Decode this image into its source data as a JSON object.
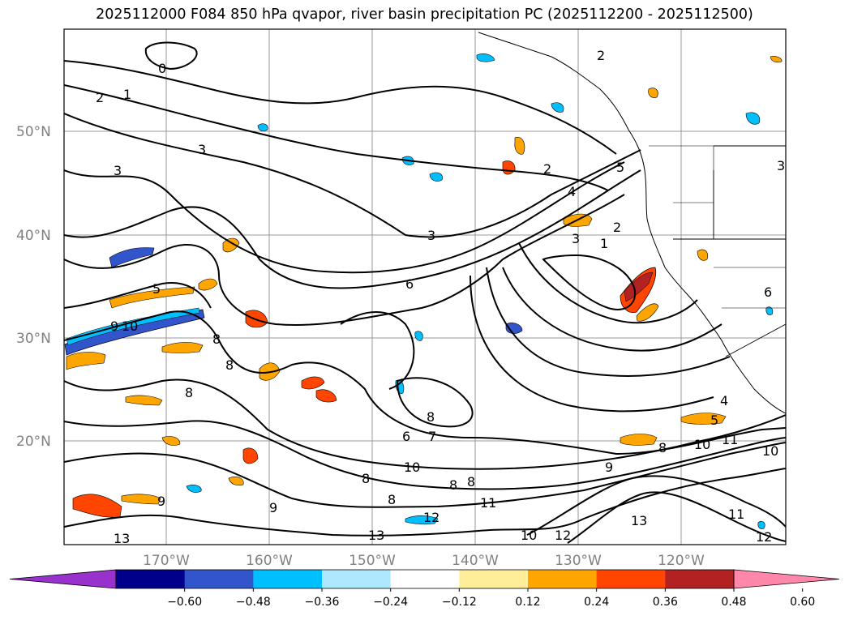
{
  "title": "2025112000 F084 850 hPa qvapor, river basin precipitation PC (2025112200 - 2025112500)",
  "map": {
    "lat_labels": [
      "50°N",
      "40°N",
      "30°N",
      "20°N"
    ],
    "lon_labels": [
      "170°W",
      "160°W",
      "150°W",
      "140°W",
      "130°W",
      "120°W"
    ],
    "contour_labels": [
      "0",
      "1",
      "2",
      "3",
      "4",
      "5",
      "6",
      "7",
      "8",
      "9",
      "10",
      "11",
      "12",
      "13"
    ]
  },
  "colorbar": {
    "colors": [
      "#9932cc",
      "#00008b",
      "#3355cc",
      "#00bfff",
      "#ade8ff",
      "#ffffff",
      "#ffee99",
      "#ffa500",
      "#ff4500",
      "#b22222",
      "#ff88aa"
    ],
    "ticks": [
      "−0.60",
      "−0.48",
      "−0.36",
      "−0.24",
      "−0.12",
      "0.12",
      "0.24",
      "0.36",
      "0.48",
      "0.60"
    ]
  }
}
